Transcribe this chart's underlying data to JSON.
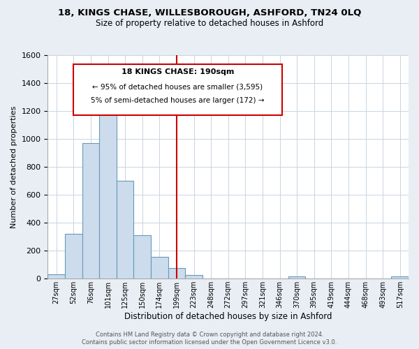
{
  "title": "18, KINGS CHASE, WILLESBOROUGH, ASHFORD, TN24 0LQ",
  "subtitle": "Size of property relative to detached houses in Ashford",
  "xlabel": "Distribution of detached houses by size in Ashford",
  "ylabel": "Number of detached properties",
  "bar_labels": [
    "27sqm",
    "52sqm",
    "76sqm",
    "101sqm",
    "125sqm",
    "150sqm",
    "174sqm",
    "199sqm",
    "223sqm",
    "248sqm",
    "272sqm",
    "297sqm",
    "321sqm",
    "346sqm",
    "370sqm",
    "395sqm",
    "419sqm",
    "444sqm",
    "468sqm",
    "493sqm",
    "517sqm"
  ],
  "bar_heights": [
    30,
    320,
    970,
    1190,
    700,
    310,
    155,
    75,
    25,
    0,
    0,
    0,
    0,
    0,
    15,
    0,
    0,
    0,
    0,
    0,
    15
  ],
  "bar_color": "#ccdcec",
  "bar_edge_color": "#6699bb",
  "vline_color": "#cc0000",
  "annotation_title": "18 KINGS CHASE: 190sqm",
  "annotation_line1": "← 95% of detached houses are smaller (3,595)",
  "annotation_line2": "5% of semi-detached houses are larger (172) →",
  "annotation_box_color": "#cc0000",
  "ylim": [
    0,
    1600
  ],
  "yticks": [
    0,
    200,
    400,
    600,
    800,
    1000,
    1200,
    1400,
    1600
  ],
  "footer1": "Contains HM Land Registry data © Crown copyright and database right 2024.",
  "footer2": "Contains public sector information licensed under the Open Government Licence v3.0.",
  "bg_color": "#e8eef4",
  "plot_bg_color": "#ffffff",
  "grid_color": "#c8d4e0"
}
